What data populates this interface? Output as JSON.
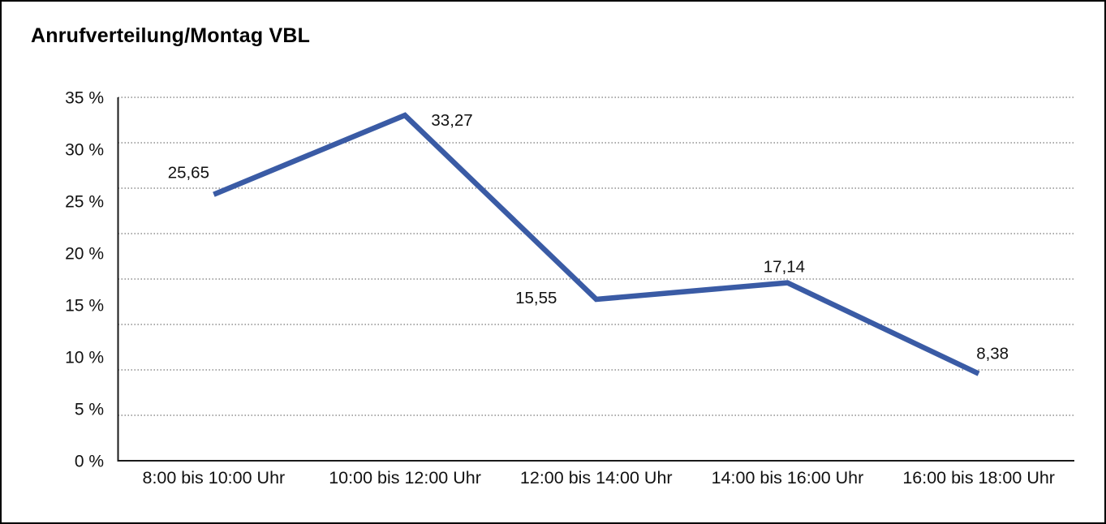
{
  "page": {
    "background": "#ffffff",
    "border_color": "#000000"
  },
  "chart_data": {
    "type": "line",
    "title": "Anrufverteilung/Montag VBL",
    "categories": [
      "8:00 bis 10:00 Uhr",
      "10:00 bis 12:00 Uhr",
      "12:00 bis 14:00 Uhr",
      "14:00 bis 16:00 Uhr",
      "16:00 bis 18:00 Uhr"
    ],
    "values": [
      25.65,
      33.27,
      15.55,
      17.14,
      8.38
    ],
    "value_labels": [
      "25,65",
      "33,27",
      "15,55",
      "17,14",
      "8,38"
    ],
    "xlabel": "",
    "ylabel": "",
    "ylim": [
      0,
      35
    ],
    "y_tick_labels": [
      "35 %",
      "30 %",
      "25 %",
      "20 %",
      "15 %",
      "10 %",
      "5 %",
      "0 %"
    ],
    "grid": "horizontal dotted",
    "legend_position": "none",
    "data_labels_visible": true,
    "line_color": "#3A5BA5",
    "axis_color": "#1a1a1a",
    "grid_color": "#555555",
    "text_color": "#111111"
  }
}
